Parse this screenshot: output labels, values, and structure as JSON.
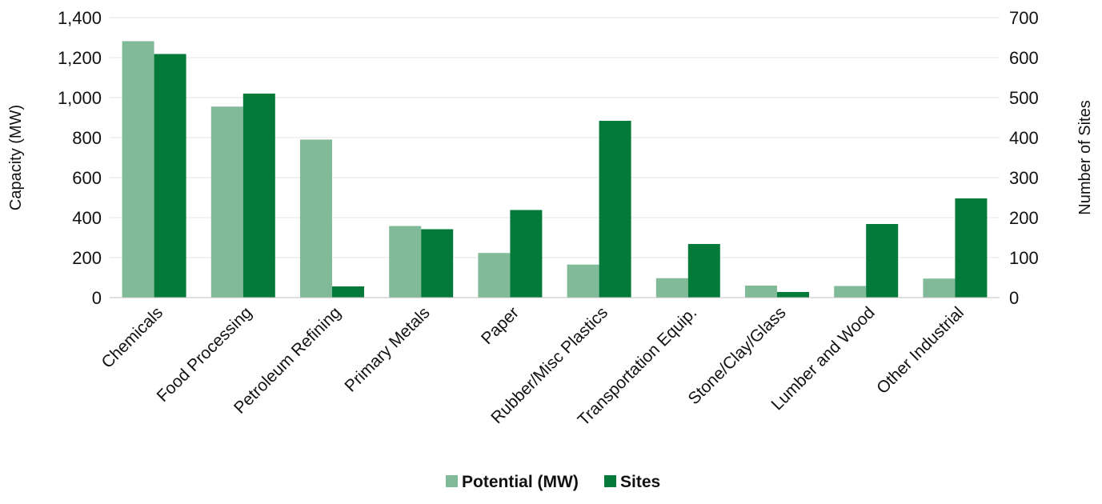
{
  "chart_data": {
    "type": "bar",
    "categories": [
      "Chemicals",
      "Food Processing",
      "Petroleum Refining",
      "Primary Metals",
      "Paper",
      "Rubber/Misc Plastics",
      "Transportation Equip.",
      "Stone/Clay/Glass",
      "Lumber and Wood",
      "Other Industrial"
    ],
    "series": [
      {
        "name": "Potential (MW)",
        "axis": "left",
        "color": "#80BA98",
        "values": [
          1282,
          955,
          790,
          358,
          223,
          165,
          97,
          60,
          58,
          95
        ]
      },
      {
        "name": "Sites",
        "axis": "right",
        "color": "#037A39",
        "values": [
          609,
          510,
          28,
          171,
          219,
          442,
          134,
          14,
          184,
          248
        ]
      }
    ],
    "ylabel": "Capacity (MW)",
    "y2label": "Number of Sites",
    "ylim": [
      0,
      1400
    ],
    "y2lim": [
      0,
      700
    ],
    "yticks": [
      "0",
      "200",
      "400",
      "600",
      "800",
      "1,000",
      "1,200",
      "1,400"
    ],
    "y2ticks": [
      "0",
      "100",
      "200",
      "300",
      "400",
      "500",
      "600",
      "700"
    ],
    "grid": true,
    "legend_position": "bottom"
  }
}
